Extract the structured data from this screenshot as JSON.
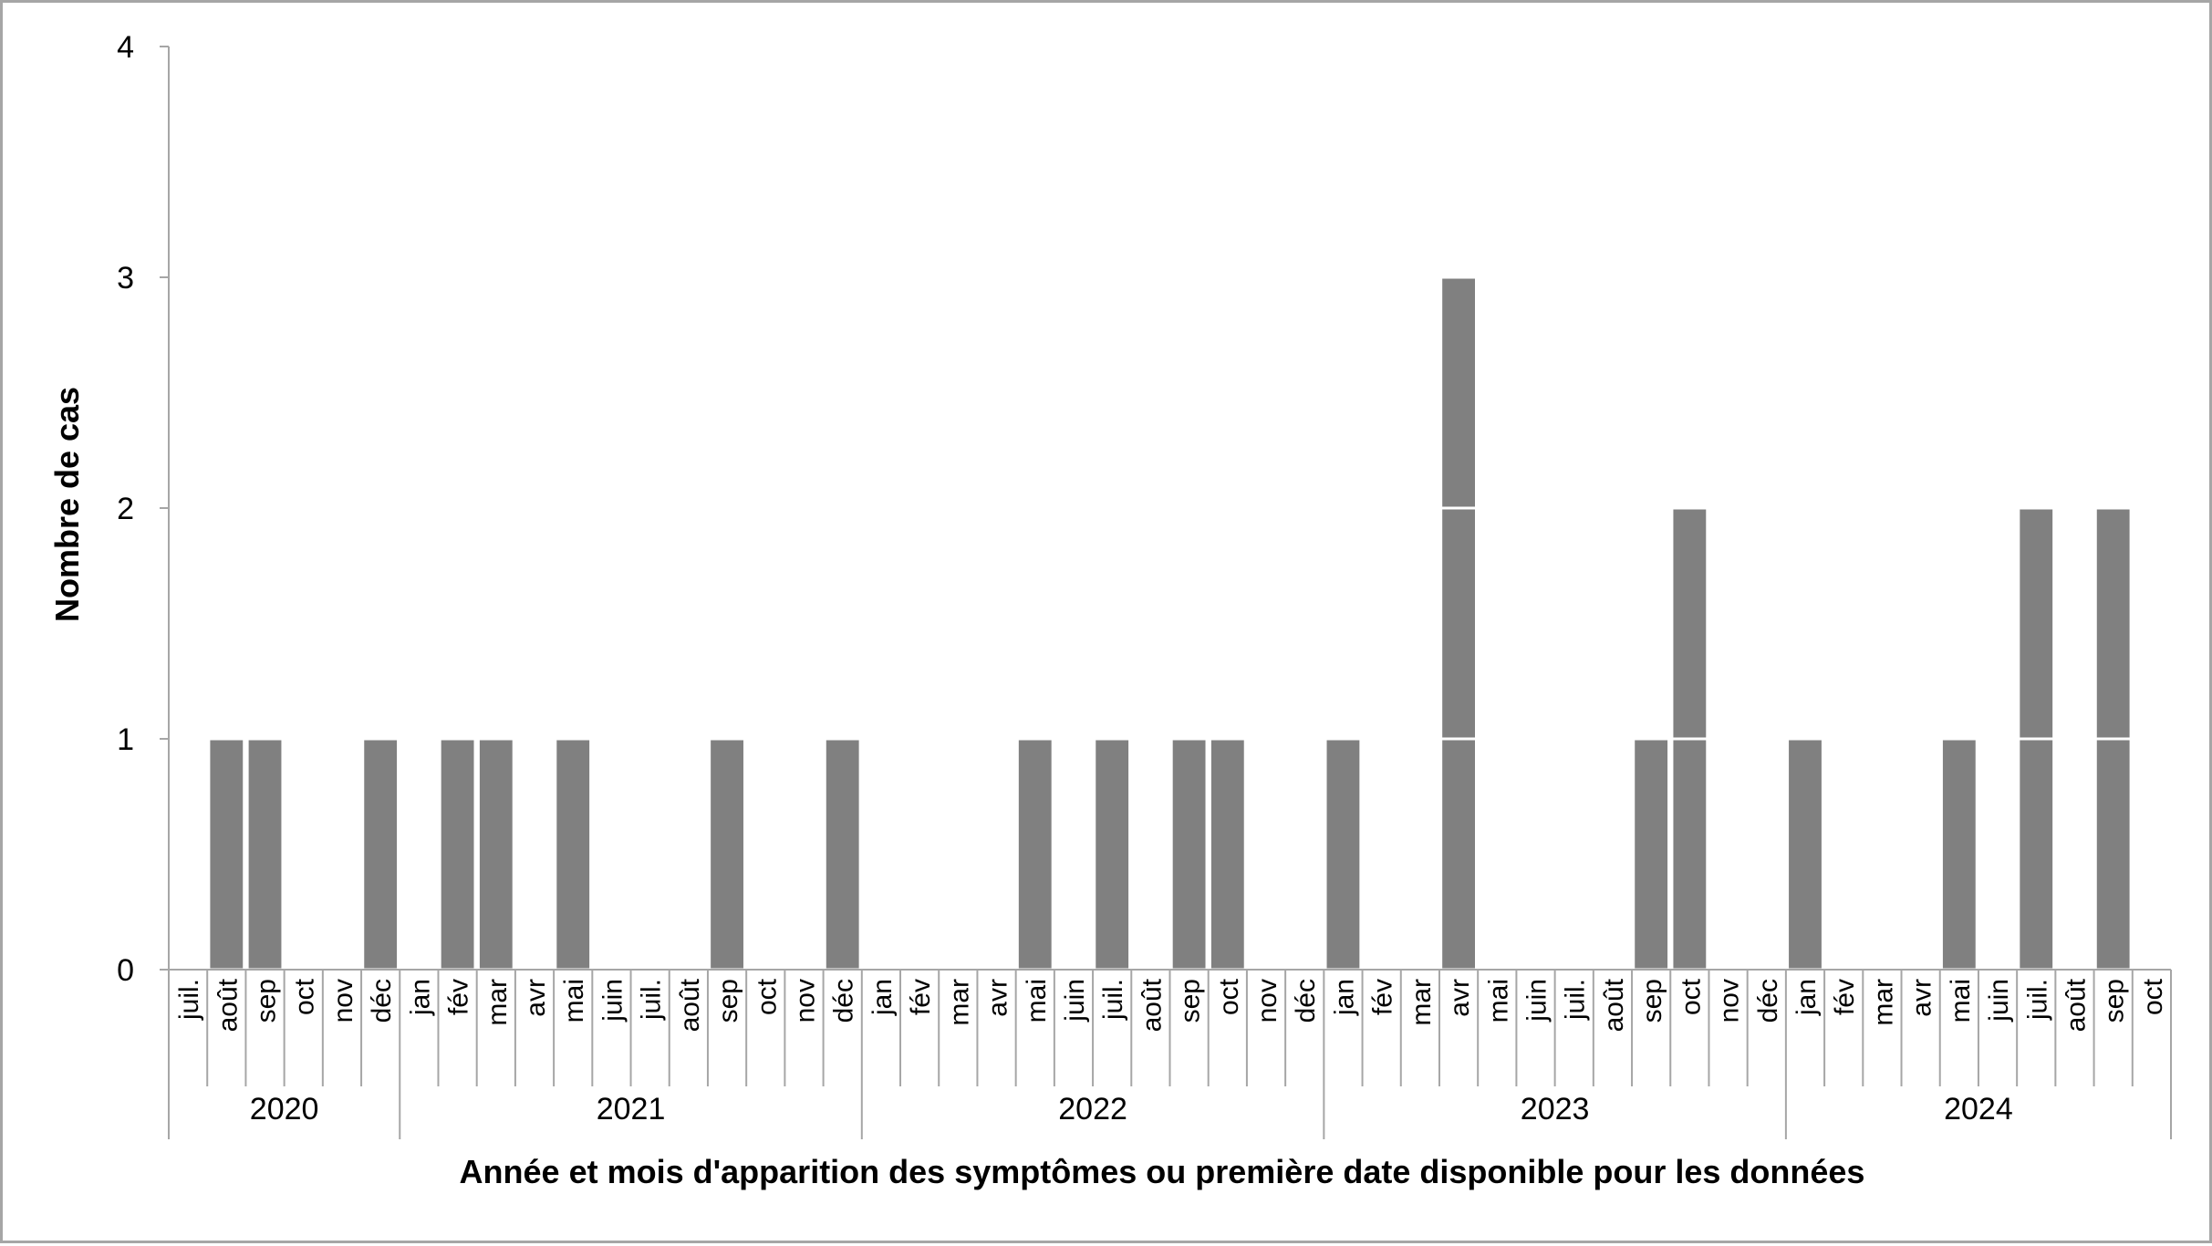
{
  "chart_data": {
    "type": "bar",
    "stacked_units": true,
    "title": "",
    "xlabel": "Année et mois d'apparition des symptômes ou première date disponible pour les données",
    "ylabel": "Nombre de cas",
    "ylim": [
      0,
      4
    ],
    "yticks": [
      0,
      1,
      2,
      3,
      4
    ],
    "grid": false,
    "legend": "none",
    "colors": {
      "bar": "#808080",
      "separator": "#ffffff",
      "axis": "#a6a6a6",
      "text": "#000000"
    },
    "years": [
      {
        "label": "2020",
        "months": [
          {
            "m": "juil.",
            "v": 0
          },
          {
            "m": "août",
            "v": 1
          },
          {
            "m": "sep",
            "v": 1
          },
          {
            "m": "oct",
            "v": 0
          },
          {
            "m": "nov",
            "v": 0
          },
          {
            "m": "déc",
            "v": 1
          }
        ]
      },
      {
        "label": "2021",
        "months": [
          {
            "m": "jan",
            "v": 0
          },
          {
            "m": "fév",
            "v": 1
          },
          {
            "m": "mar",
            "v": 1
          },
          {
            "m": "avr",
            "v": 0
          },
          {
            "m": "mai",
            "v": 1
          },
          {
            "m": "juin",
            "v": 0
          },
          {
            "m": "juil.",
            "v": 0
          },
          {
            "m": "août",
            "v": 0
          },
          {
            "m": "sep",
            "v": 1
          },
          {
            "m": "oct",
            "v": 0
          },
          {
            "m": "nov",
            "v": 0
          },
          {
            "m": "déc",
            "v": 1
          }
        ]
      },
      {
        "label": "2022",
        "months": [
          {
            "m": "jan",
            "v": 0
          },
          {
            "m": "fév",
            "v": 0
          },
          {
            "m": "mar",
            "v": 0
          },
          {
            "m": "avr",
            "v": 0
          },
          {
            "m": "mai",
            "v": 1
          },
          {
            "m": "juin",
            "v": 0
          },
          {
            "m": "juil.",
            "v": 1
          },
          {
            "m": "août",
            "v": 0
          },
          {
            "m": "sep",
            "v": 1
          },
          {
            "m": "oct",
            "v": 1
          },
          {
            "m": "nov",
            "v": 0
          },
          {
            "m": "déc",
            "v": 0
          }
        ]
      },
      {
        "label": "2023",
        "months": [
          {
            "m": "jan",
            "v": 1
          },
          {
            "m": "fév",
            "v": 0
          },
          {
            "m": "mar",
            "v": 0
          },
          {
            "m": "avr",
            "v": 3
          },
          {
            "m": "mai",
            "v": 0
          },
          {
            "m": "juin",
            "v": 0
          },
          {
            "m": "juil.",
            "v": 0
          },
          {
            "m": "août",
            "v": 0
          },
          {
            "m": "sep",
            "v": 1
          },
          {
            "m": "oct",
            "v": 2
          },
          {
            "m": "nov",
            "v": 0
          },
          {
            "m": "déc",
            "v": 0
          }
        ]
      },
      {
        "label": "2024",
        "months": [
          {
            "m": "jan",
            "v": 1
          },
          {
            "m": "fév",
            "v": 0
          },
          {
            "m": "mar",
            "v": 0
          },
          {
            "m": "avr",
            "v": 0
          },
          {
            "m": "mai",
            "v": 1
          },
          {
            "m": "juin",
            "v": 0
          },
          {
            "m": "juil.",
            "v": 2
          },
          {
            "m": "août",
            "v": 0
          },
          {
            "m": "sep",
            "v": 2
          },
          {
            "m": "oct",
            "v": 0
          }
        ]
      }
    ]
  }
}
